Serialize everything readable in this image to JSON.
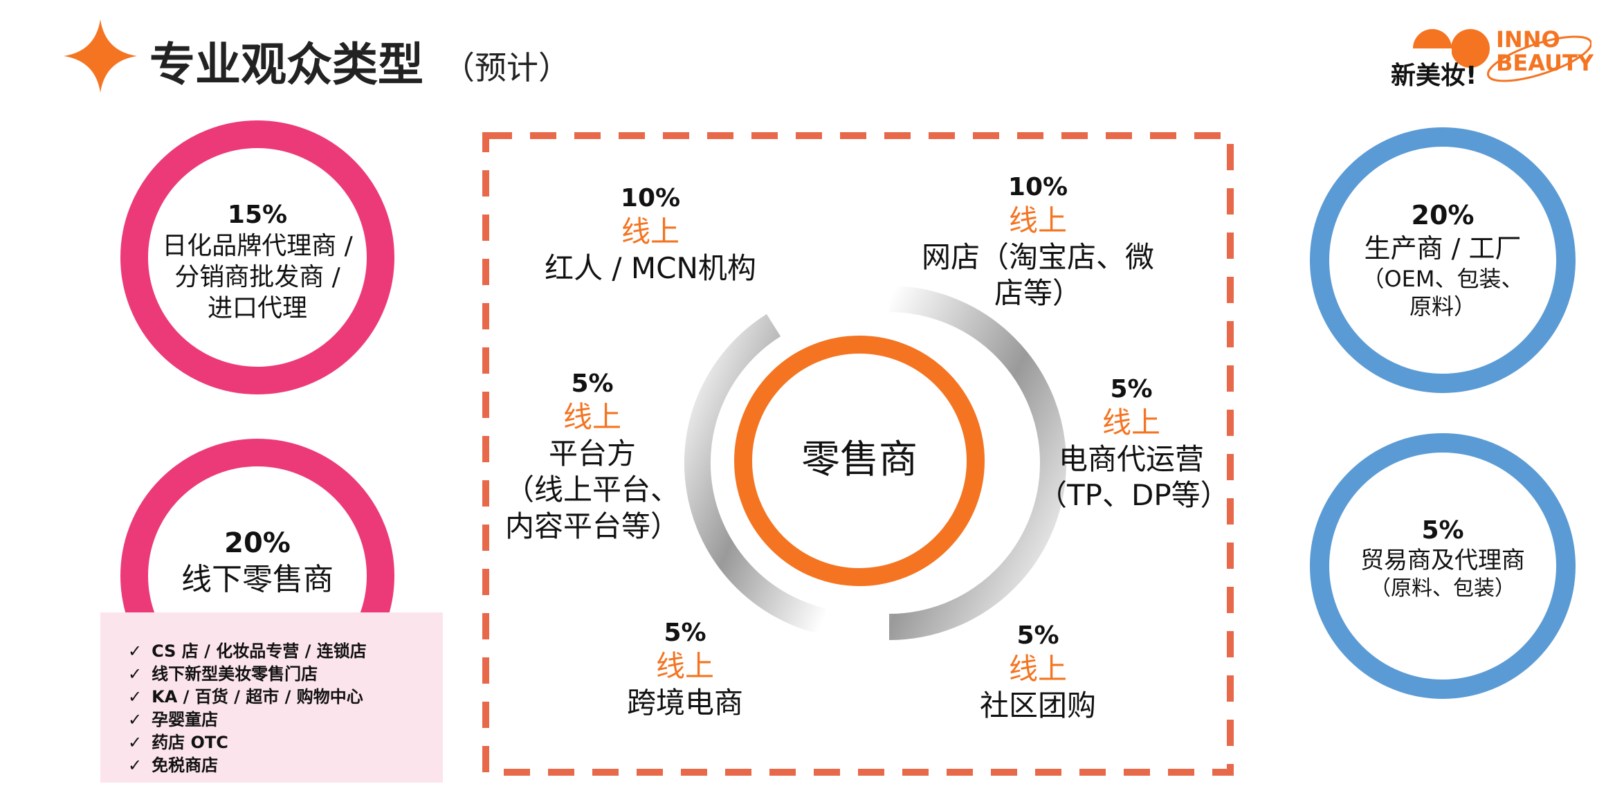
{
  "header": {
    "title": "专业观众类型",
    "subtitle": "（预计）",
    "logo_cn": "新美妆!",
    "logo_en_1": "INNO",
    "logo_en_2": "BEAUTY"
  },
  "left_rings": [
    {
      "pct": "15%",
      "lines": [
        "日化品牌代理商 /",
        "分销商批发商 /",
        "进口代理"
      ]
    },
    {
      "pct": "20%",
      "lines": [
        "线下零售商"
      ]
    }
  ],
  "left_bullets": [
    "CS 店 / 化妆品专营 / 连锁店",
    "线下新型美妆零售门店",
    "KA / 百货 / 超市 / 购物中心",
    "孕婴童店",
    "药店 OTC",
    "免税商店"
  ],
  "center": {
    "label": "零售商",
    "segments": [
      {
        "pct": "10%",
        "channel": "线上",
        "lines": [
          "红人 / MCN机构"
        ]
      },
      {
        "pct": "10%",
        "channel": "线上",
        "lines": [
          "网店（淘宝店、微",
          "店等）"
        ]
      },
      {
        "pct": "5%",
        "channel": "线上",
        "lines": [
          "平台方",
          "（线上平台、",
          "内容平台等）"
        ]
      },
      {
        "pct": "5%",
        "channel": "线上",
        "lines": [
          "电商代运营",
          "（TP、DP等）"
        ]
      },
      {
        "pct": "5%",
        "channel": "线上",
        "lines": [
          "跨境电商"
        ]
      },
      {
        "pct": "5%",
        "channel": "线上",
        "lines": [
          "社区团购"
        ]
      }
    ]
  },
  "right_rings": [
    {
      "pct": "20%",
      "lines": [
        "生产商 / 工厂",
        "（OEM、包装、",
        "原料）"
      ]
    },
    {
      "pct": "5%",
      "lines": [
        "贸易商及代理商",
        "（原料、包装）"
      ]
    }
  ],
  "colors": {
    "pink": "#ec3a78",
    "blue": "#5b9bd5",
    "orange": "#f47421",
    "dash": "#e8684a",
    "bullet_bg": "#fce4ec"
  },
  "icons": {
    "title": "four-point-star-icon",
    "logo": "inno-beauty-logo"
  }
}
